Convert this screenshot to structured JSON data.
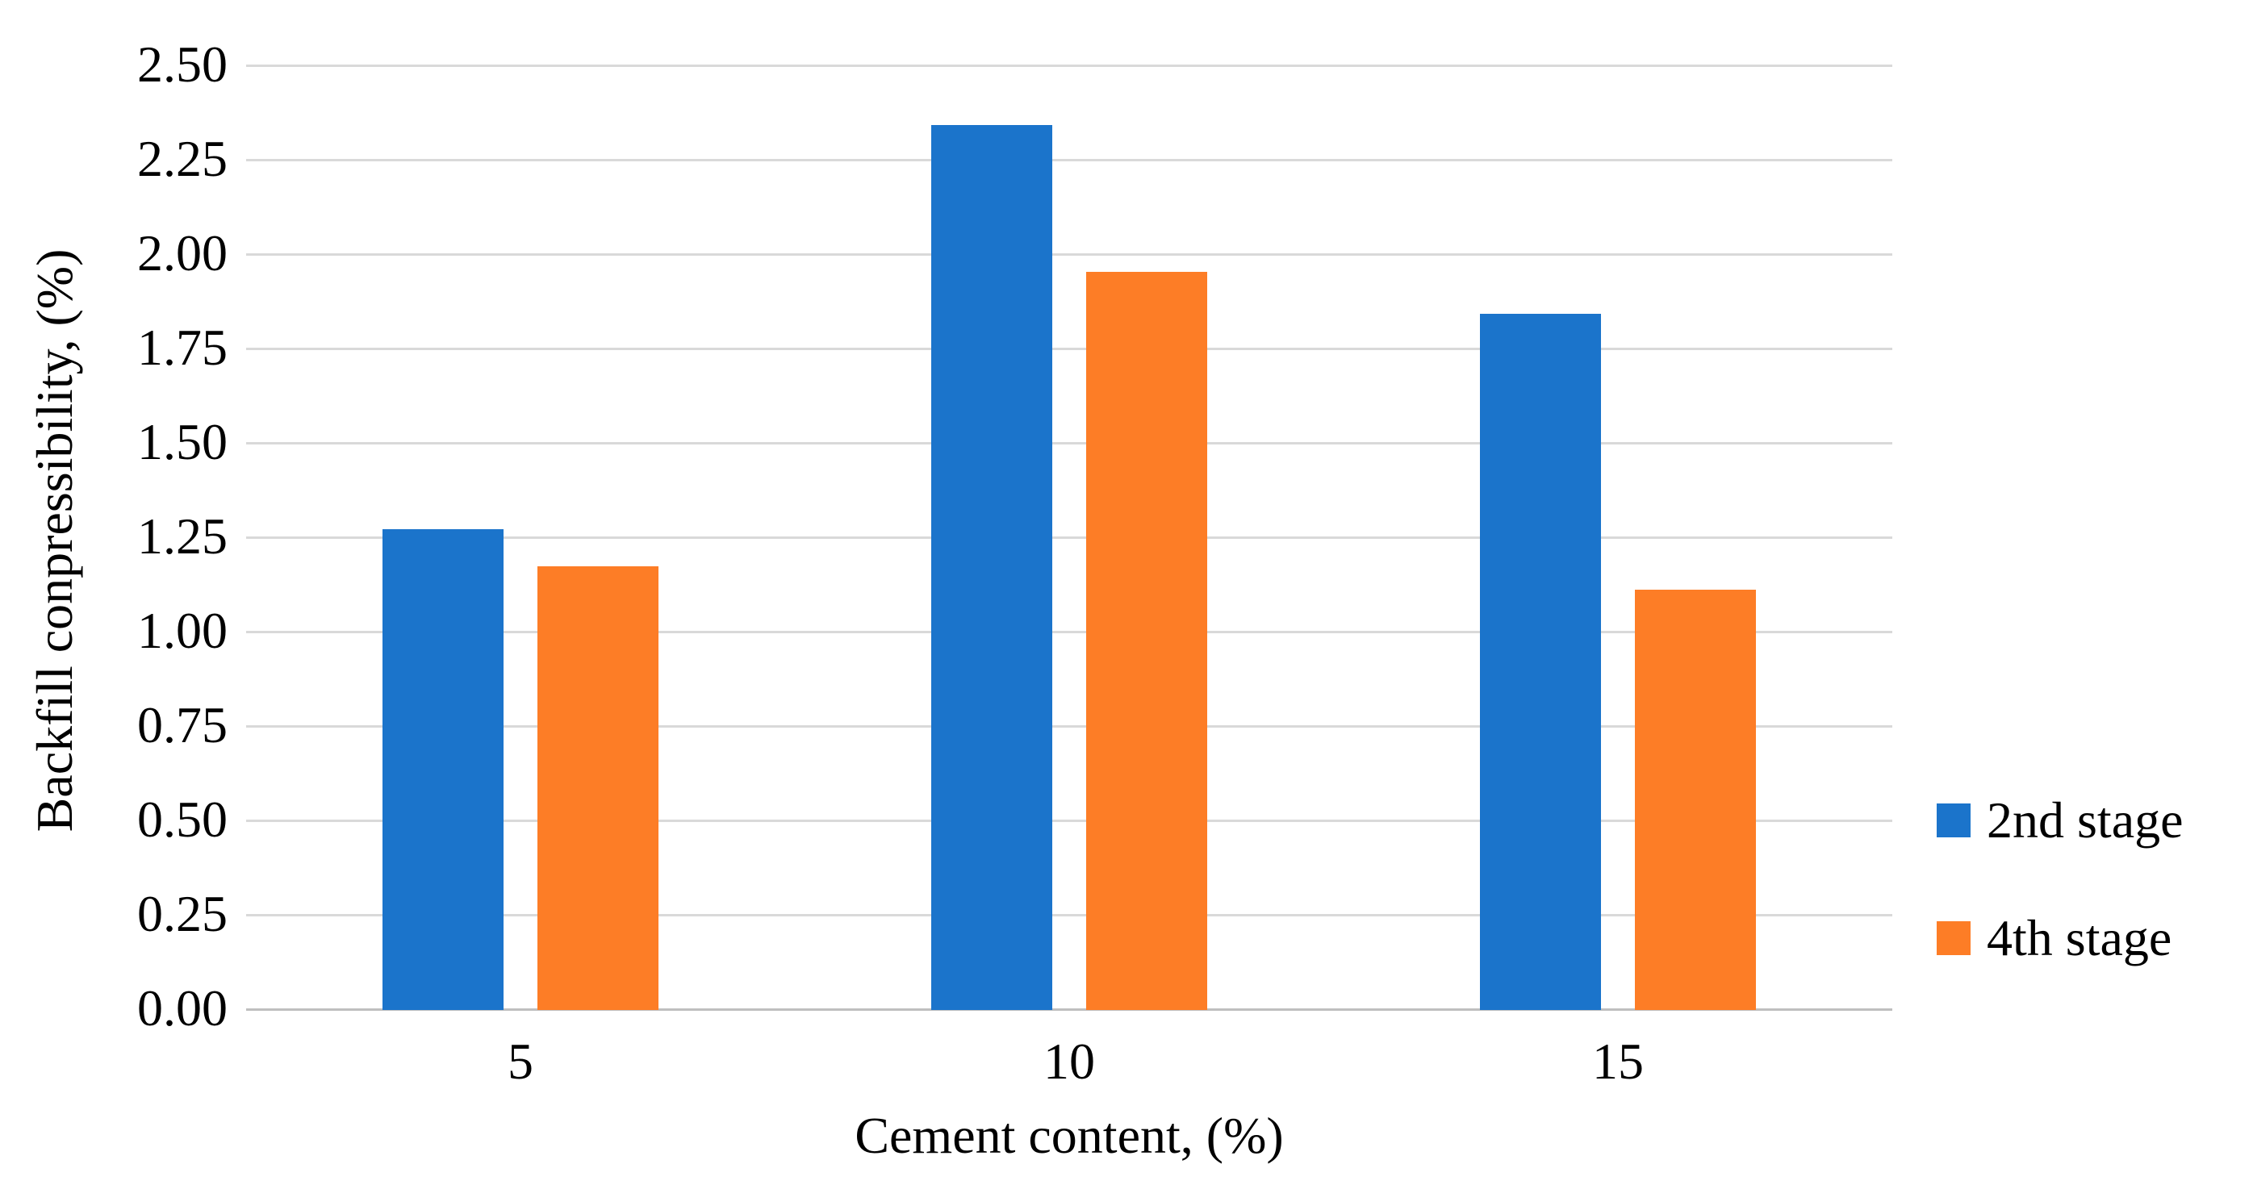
{
  "chart_data": {
    "type": "bar",
    "title": "",
    "categories": [
      "5",
      "10",
      "15"
    ],
    "series": [
      {
        "name": "2nd stage",
        "color": "#1B74CB",
        "values": [
          1.27,
          2.34,
          1.84
        ]
      },
      {
        "name": "4th stage",
        "color": "#FD7D26",
        "values": [
          1.17,
          1.95,
          1.11
        ]
      }
    ],
    "xlabel": "Cement content, (%)",
    "ylabel": "Backfill conpressibility, (%)",
    "ylim": [
      0.0,
      2.5
    ],
    "ytick_step": 0.25,
    "ytick_decimals": 2,
    "ytick_labels": [
      "0.00",
      "0.25",
      "0.50",
      "0.75",
      "1.00",
      "1.25",
      "1.50",
      "1.75",
      "2.00",
      "2.25",
      "2.50"
    ],
    "grid": true,
    "gridline_color": "#D9D9D9",
    "axis_line_color": "#BFBFBF",
    "text_color": "#000000",
    "background_color": "#FFFFFF",
    "legend_position": "right"
  }
}
